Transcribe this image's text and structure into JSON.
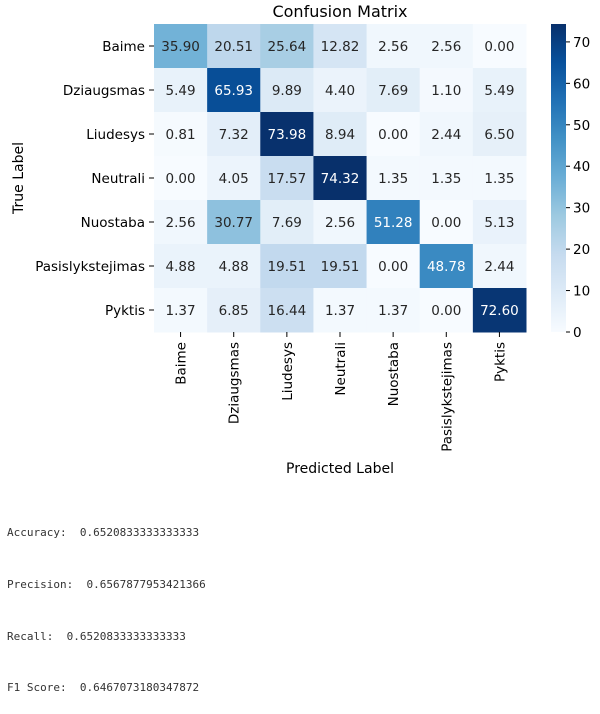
{
  "chart_data": {
    "type": "heatmap",
    "title": "Confusion Matrix",
    "xlabel": "Predicted Label",
    "ylabel": "True Label",
    "rows": [
      "Baime",
      "Dziaugsmas",
      "Liudesys",
      "Neutrali",
      "Nuostaba",
      "Pasislykstejimas",
      "Pyktis"
    ],
    "columns": [
      "Baime",
      "Dziaugsmas",
      "Liudesys",
      "Neutrali",
      "Nuostaba",
      "Pasislykstejimas",
      "Pyktis"
    ],
    "values": [
      [
        35.9,
        20.51,
        25.64,
        12.82,
        2.56,
        2.56,
        0.0
      ],
      [
        5.49,
        65.93,
        9.89,
        4.4,
        7.69,
        1.1,
        5.49
      ],
      [
        0.81,
        7.32,
        73.98,
        8.94,
        0.0,
        2.44,
        6.5
      ],
      [
        0.0,
        4.05,
        17.57,
        74.32,
        1.35,
        1.35,
        1.35
      ],
      [
        2.56,
        30.77,
        7.69,
        2.56,
        51.28,
        0.0,
        5.13
      ],
      [
        4.88,
        4.88,
        19.51,
        19.51,
        0.0,
        48.78,
        2.44
      ],
      [
        1.37,
        6.85,
        16.44,
        1.37,
        1.37,
        0.0,
        72.6
      ]
    ],
    "colormap": "Blues",
    "vmin": 0,
    "vmax": 74.32,
    "colorbar_ticks": [
      0,
      10,
      20,
      30,
      40,
      50,
      60,
      70
    ]
  },
  "metrics": [
    {
      "label": "Accuracy:",
      "value": "0.6520833333333333"
    },
    {
      "label": "Precision:",
      "value": "0.6567877953421366"
    },
    {
      "label": "Recall:",
      "value": "0.6520833333333333"
    },
    {
      "label": "F1 Score:",
      "value": "0.6467073180347872"
    }
  ]
}
